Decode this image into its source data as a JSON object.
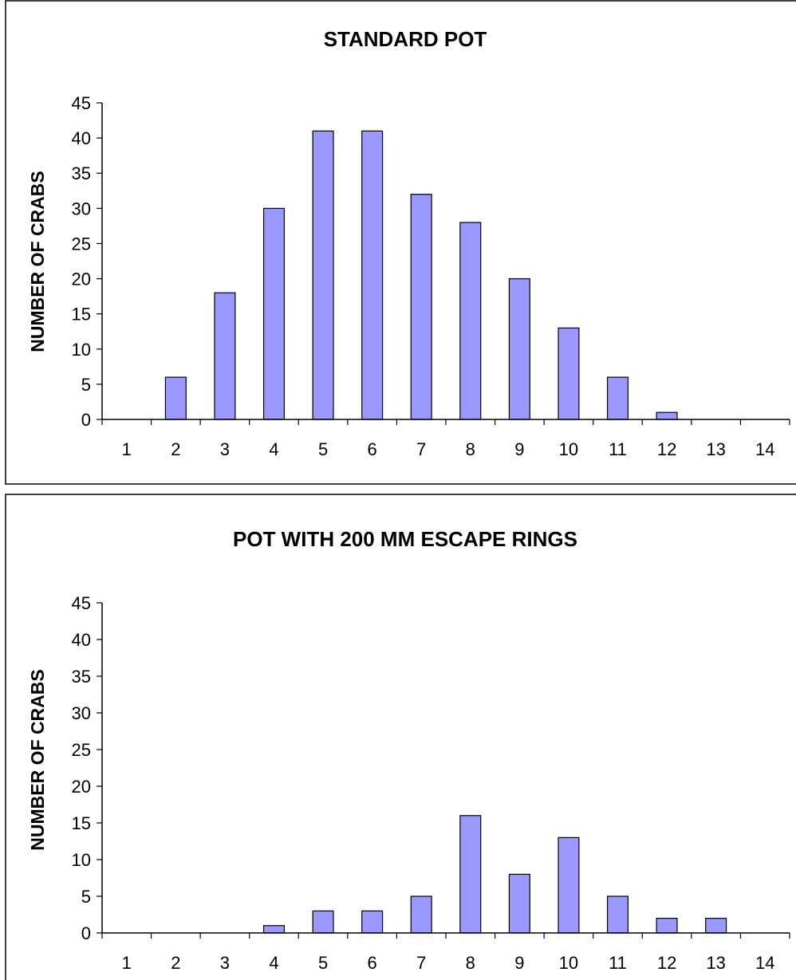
{
  "chart_data": [
    {
      "type": "bar",
      "title": "STANDARD POT",
      "xlabel": "",
      "ylabel": "NUMBER OF CRABS",
      "categories": [
        "1",
        "2",
        "3",
        "4",
        "5",
        "6",
        "7",
        "8",
        "9",
        "10",
        "11",
        "12",
        "13",
        "14"
      ],
      "values": [
        0,
        6,
        18,
        30,
        41,
        41,
        32,
        28,
        20,
        13,
        6,
        1,
        0,
        0
      ],
      "ylim": [
        0,
        45
      ],
      "yticks": [
        0,
        5,
        10,
        15,
        20,
        25,
        30,
        35,
        40,
        45
      ],
      "bar_color": "#9999ff",
      "grid": false,
      "legend": "none"
    },
    {
      "type": "bar",
      "title": "POT WITH 200 MM ESCAPE RINGS",
      "xlabel": "",
      "ylabel": "NUMBER OF CRABS",
      "categories": [
        "1",
        "2",
        "3",
        "4",
        "5",
        "6",
        "7",
        "8",
        "9",
        "10",
        "11",
        "12",
        "13",
        "14"
      ],
      "values": [
        0,
        0,
        0,
        1,
        3,
        3,
        5,
        16,
        8,
        13,
        5,
        2,
        2,
        0
      ],
      "ylim": [
        0,
        45
      ],
      "yticks": [
        0,
        5,
        10,
        15,
        20,
        25,
        30,
        35,
        40,
        45
      ],
      "bar_color": "#9999ff",
      "grid": false,
      "legend": "none"
    }
  ]
}
